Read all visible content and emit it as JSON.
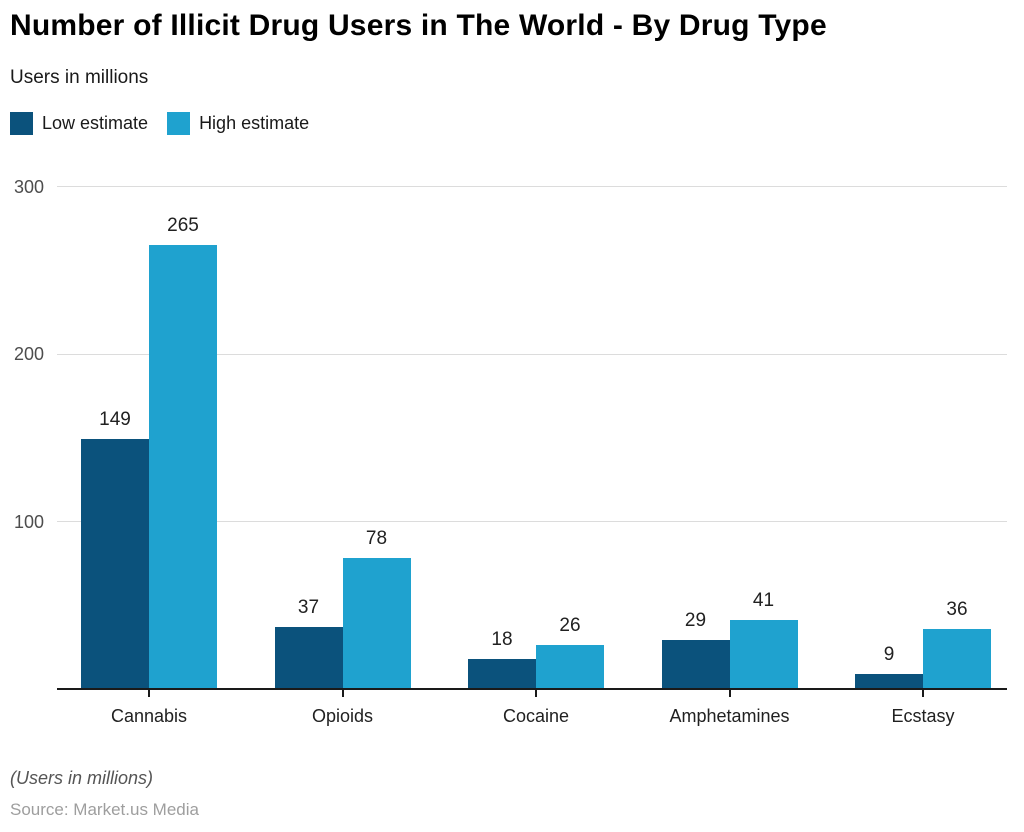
{
  "header": {
    "title": "Number of Illicit Drug Users in The World - By Drug Type",
    "subtitle": "Users in millions"
  },
  "legend": {
    "items": [
      {
        "label": "Low estimate",
        "color": "#0b527c"
      },
      {
        "label": "High estimate",
        "color": "#1fa2cf"
      }
    ]
  },
  "chart_data": {
    "type": "bar",
    "title": "Number of Illicit Drug Users in The World - By Drug Type",
    "subtitle": "Users in millions",
    "categories": [
      "Cannabis",
      "Opioids",
      "Cocaine",
      "Amphetamines",
      "Ecstasy"
    ],
    "series": [
      {
        "name": "Low estimate",
        "color": "#0b527c",
        "values": [
          149,
          37,
          18,
          29,
          9
        ]
      },
      {
        "name": "High estimate",
        "color": "#1fa2cf",
        "values": [
          265,
          78,
          26,
          41,
          36
        ]
      }
    ],
    "xlabel": "",
    "ylabel": "Users in millions",
    "ylim": [
      0,
      300
    ],
    "yticks": [
      100,
      200,
      300
    ],
    "grid": "horizontal",
    "legend_position": "top-left",
    "value_labels": true
  },
  "footer": {
    "note": "(Users in millions)",
    "source": "Source: Market.us Media"
  }
}
